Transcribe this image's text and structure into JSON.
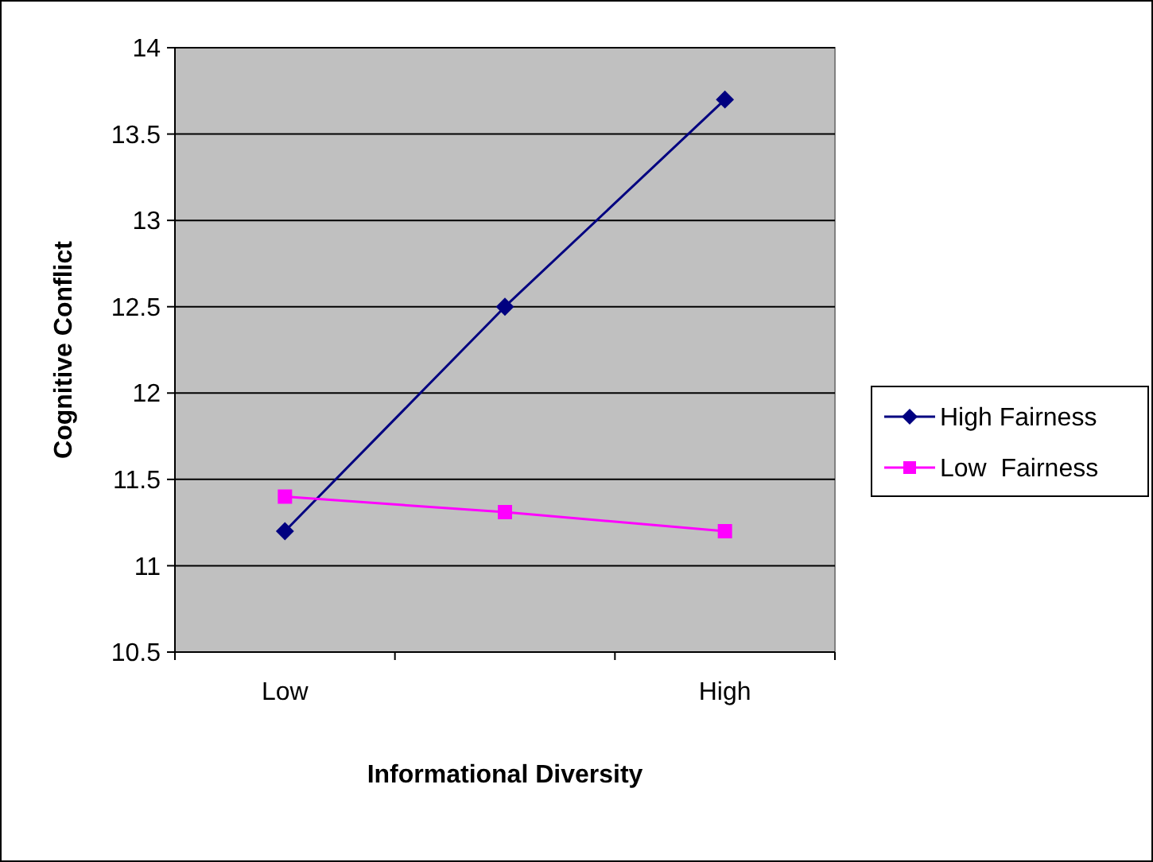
{
  "chart_data": {
    "type": "line",
    "xlabel": "Informational Diversity",
    "ylabel": "Cognitive Conflict",
    "categories": [
      "Low",
      null,
      "High"
    ],
    "series": [
      {
        "name": "High Fairness",
        "color": "#000080",
        "marker": "diamond",
        "values": [
          11.2,
          12.5,
          13.7
        ]
      },
      {
        "name": "Low  Fairness",
        "color": "#ff00ff",
        "marker": "square",
        "values": [
          11.4,
          11.31,
          11.2
        ]
      }
    ],
    "ylim": [
      10.5,
      14
    ],
    "yticks": [
      {
        "value": 10.5,
        "label": "10.5"
      },
      11,
      {
        "value": 11.5,
        "label": "11.5"
      },
      12,
      {
        "value": 12.5,
        "label": "12.5"
      },
      13,
      {
        "value": 13.5,
        "label": "13.5"
      },
      14
    ],
    "grid": "y",
    "legend": "right"
  }
}
